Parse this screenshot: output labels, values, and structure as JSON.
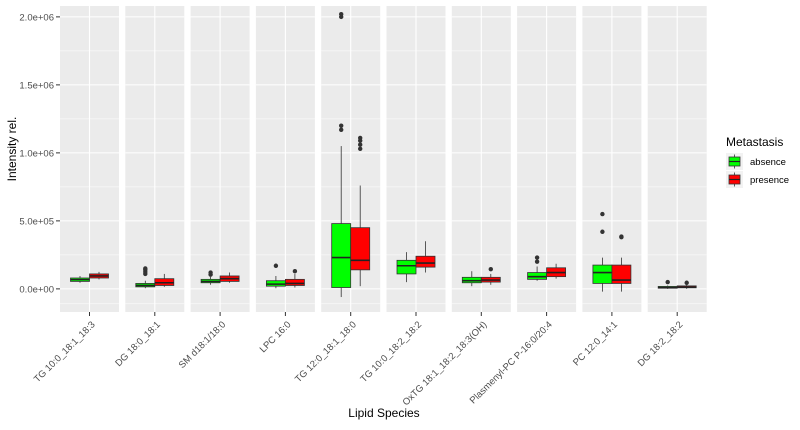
{
  "chart_data": {
    "type": "boxplot",
    "title": "",
    "xlabel": "Lipid Species",
    "ylabel": "Intensity rel.",
    "ylim": [
      -170000,
      2080000
    ],
    "yticks": [
      0,
      500000,
      1000000,
      1500000,
      2000000
    ],
    "ytick_labels": [
      "0.0e+00",
      "5.0e+05",
      "1.0e+06",
      "1.5e+06",
      "2.0e+06"
    ],
    "grid": true,
    "legend": {
      "title": "Metastasis",
      "position": "right",
      "entries": [
        {
          "name": "absence",
          "color": "#00ff00"
        },
        {
          "name": "presence",
          "color": "#ff0000"
        }
      ]
    },
    "groups": [
      "absence",
      "presence"
    ],
    "colors": {
      "absence": "#00ff00",
      "presence": "#ff0000",
      "panel": "#ebebeb",
      "grid": "#ffffff"
    },
    "facets": [
      {
        "label": "TG 10:0_18:1_18:3",
        "boxes": {
          "absence": {
            "wlo": 45000,
            "q1": 55000,
            "med": 68000,
            "q3": 80000,
            "whi": 95000,
            "out": []
          },
          "presence": {
            "wlo": 70000,
            "q1": 80000,
            "med": 95000,
            "q3": 110000,
            "whi": 125000,
            "out": []
          }
        }
      },
      {
        "label": "DG 18:0_18:1",
        "boxes": {
          "absence": {
            "wlo": 5000,
            "q1": 15000,
            "med": 25000,
            "q3": 40000,
            "whi": 60000,
            "out": [
              110000,
              125000,
              140000,
              150000
            ]
          },
          "presence": {
            "wlo": 15000,
            "q1": 25000,
            "med": 45000,
            "q3": 75000,
            "whi": 110000,
            "out": []
          }
        }
      },
      {
        "label": "SM d18:1/18:0",
        "boxes": {
          "absence": {
            "wlo": 30000,
            "q1": 45000,
            "med": 55000,
            "q3": 70000,
            "whi": 90000,
            "out": [
              105000,
              120000
            ]
          },
          "presence": {
            "wlo": 45000,
            "q1": 55000,
            "med": 75000,
            "q3": 95000,
            "whi": 120000,
            "out": []
          }
        }
      },
      {
        "label": "LPC 16:0",
        "boxes": {
          "absence": {
            "wlo": 5000,
            "q1": 20000,
            "med": 35000,
            "q3": 60000,
            "whi": 95000,
            "out": [
              170000
            ]
          },
          "presence": {
            "wlo": 10000,
            "q1": 25000,
            "med": 40000,
            "q3": 70000,
            "whi": 110000,
            "out": [
              130000
            ]
          }
        }
      },
      {
        "label": "TG 12:0_18:1_18:0",
        "boxes": {
          "absence": {
            "wlo": -60000,
            "q1": 10000,
            "med": 230000,
            "q3": 480000,
            "whi": 1050000,
            "out": [
              1170000,
              1200000,
              2000000,
              2020000
            ]
          },
          "presence": {
            "wlo": 20000,
            "q1": 140000,
            "med": 210000,
            "q3": 450000,
            "whi": 760000,
            "out": [
              1030000,
              1060000,
              1090000,
              1110000
            ]
          }
        }
      },
      {
        "label": "TG 10:0_18:2_18:2",
        "boxes": {
          "absence": {
            "wlo": 50000,
            "q1": 110000,
            "med": 170000,
            "q3": 210000,
            "whi": 270000,
            "out": []
          },
          "presence": {
            "wlo": 120000,
            "q1": 160000,
            "med": 190000,
            "q3": 240000,
            "whi": 350000,
            "out": []
          }
        }
      },
      {
        "label": "OxTG 18:1_18:2_18:3(OH)",
        "boxes": {
          "absence": {
            "wlo": 20000,
            "q1": 45000,
            "med": 60000,
            "q3": 85000,
            "whi": 130000,
            "out": []
          },
          "presence": {
            "wlo": 30000,
            "q1": 50000,
            "med": 65000,
            "q3": 85000,
            "whi": 110000,
            "out": [
              145000
            ]
          }
        }
      },
      {
        "label": "Plasmenyl-PC P-16:0/20:4",
        "boxes": {
          "absence": {
            "wlo": 60000,
            "q1": 70000,
            "med": 90000,
            "q3": 120000,
            "whi": 165000,
            "out": [
              200000,
              230000
            ]
          },
          "presence": {
            "wlo": 75000,
            "q1": 90000,
            "med": 120000,
            "q3": 155000,
            "whi": 185000,
            "out": []
          }
        }
      },
      {
        "label": "PC 12:0_14:1",
        "boxes": {
          "absence": {
            "wlo": -20000,
            "q1": 40000,
            "med": 120000,
            "q3": 175000,
            "whi": 230000,
            "out": [
              420000,
              550000
            ]
          },
          "presence": {
            "wlo": -20000,
            "q1": 40000,
            "med": 65000,
            "q3": 175000,
            "whi": 230000,
            "out": [
              380000,
              385000
            ]
          }
        }
      },
      {
        "label": "DG 18:2_18:2",
        "boxes": {
          "absence": {
            "wlo": 0,
            "q1": 5000,
            "med": 10000,
            "q3": 18000,
            "whi": 25000,
            "out": [
              50000
            ]
          },
          "presence": {
            "wlo": 0,
            "q1": 8000,
            "med": 13000,
            "q3": 22000,
            "whi": 30000,
            "out": [
              45000
            ]
          }
        }
      }
    ]
  }
}
